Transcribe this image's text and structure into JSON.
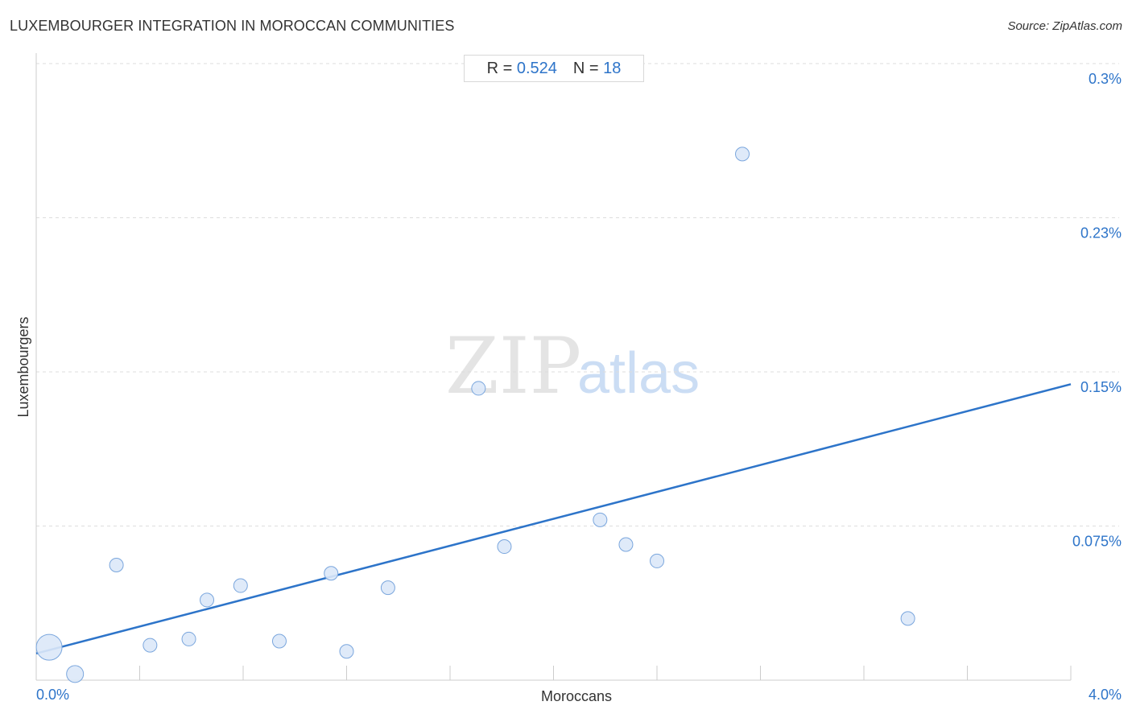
{
  "header": {
    "title": "LUXEMBOURGER INTEGRATION IN MOROCCAN COMMUNITIES",
    "source": "Source: ZipAtlas.com"
  },
  "stats": {
    "r_label": "R =",
    "r_value": "0.524",
    "n_label": "N =",
    "n_value": "18"
  },
  "watermark": {
    "zip": "ZIP",
    "atlas": "atlas"
  },
  "colors": {
    "accent": "#2d74c9",
    "point_fill": "#dce8f8",
    "point_stroke": "#7aa6dd",
    "grid": "#dddddd"
  },
  "chart_data": {
    "type": "scatter",
    "title": "LUXEMBOURGER INTEGRATION IN MOROCCAN COMMUNITIES",
    "xlabel": "Moroccans",
    "ylabel": "Luxembourgers",
    "xlim": [
      0,
      4.0
    ],
    "ylim": [
      0,
      0.3
    ],
    "x_tick_labels": [
      {
        "value": 0,
        "label": "0.0%"
      },
      {
        "value": 4.0,
        "label": "4.0%"
      }
    ],
    "y_tick_labels": [
      {
        "value": 0.075,
        "label": "0.075%"
      },
      {
        "value": 0.15,
        "label": "0.15%"
      },
      {
        "value": 0.225,
        "label": "0.23%"
      },
      {
        "value": 0.3,
        "label": "0.3%"
      }
    ],
    "grid": true,
    "points": [
      {
        "x": 0.05,
        "y": 0.016,
        "size": "large"
      },
      {
        "x": 0.15,
        "y": 0.003,
        "size": "medium"
      },
      {
        "x": 0.31,
        "y": 0.056,
        "size": "small"
      },
      {
        "x": 0.44,
        "y": 0.017,
        "size": "small"
      },
      {
        "x": 0.59,
        "y": 0.02,
        "size": "small"
      },
      {
        "x": 0.66,
        "y": 0.039,
        "size": "small"
      },
      {
        "x": 0.79,
        "y": 0.046,
        "size": "small"
      },
      {
        "x": 0.94,
        "y": 0.019,
        "size": "small"
      },
      {
        "x": 1.14,
        "y": 0.052,
        "size": "small"
      },
      {
        "x": 1.2,
        "y": 0.014,
        "size": "small"
      },
      {
        "x": 1.36,
        "y": 0.045,
        "size": "small"
      },
      {
        "x": 1.71,
        "y": 0.142,
        "size": "small"
      },
      {
        "x": 1.81,
        "y": 0.065,
        "size": "small"
      },
      {
        "x": 2.18,
        "y": 0.078,
        "size": "small"
      },
      {
        "x": 2.28,
        "y": 0.066,
        "size": "small"
      },
      {
        "x": 2.4,
        "y": 0.058,
        "size": "small"
      },
      {
        "x": 2.73,
        "y": 0.256,
        "size": "small"
      },
      {
        "x": 3.37,
        "y": 0.03,
        "size": "small"
      }
    ],
    "trendline": {
      "x": [
        0,
        4.0
      ],
      "y": [
        0.013,
        0.144
      ]
    }
  }
}
